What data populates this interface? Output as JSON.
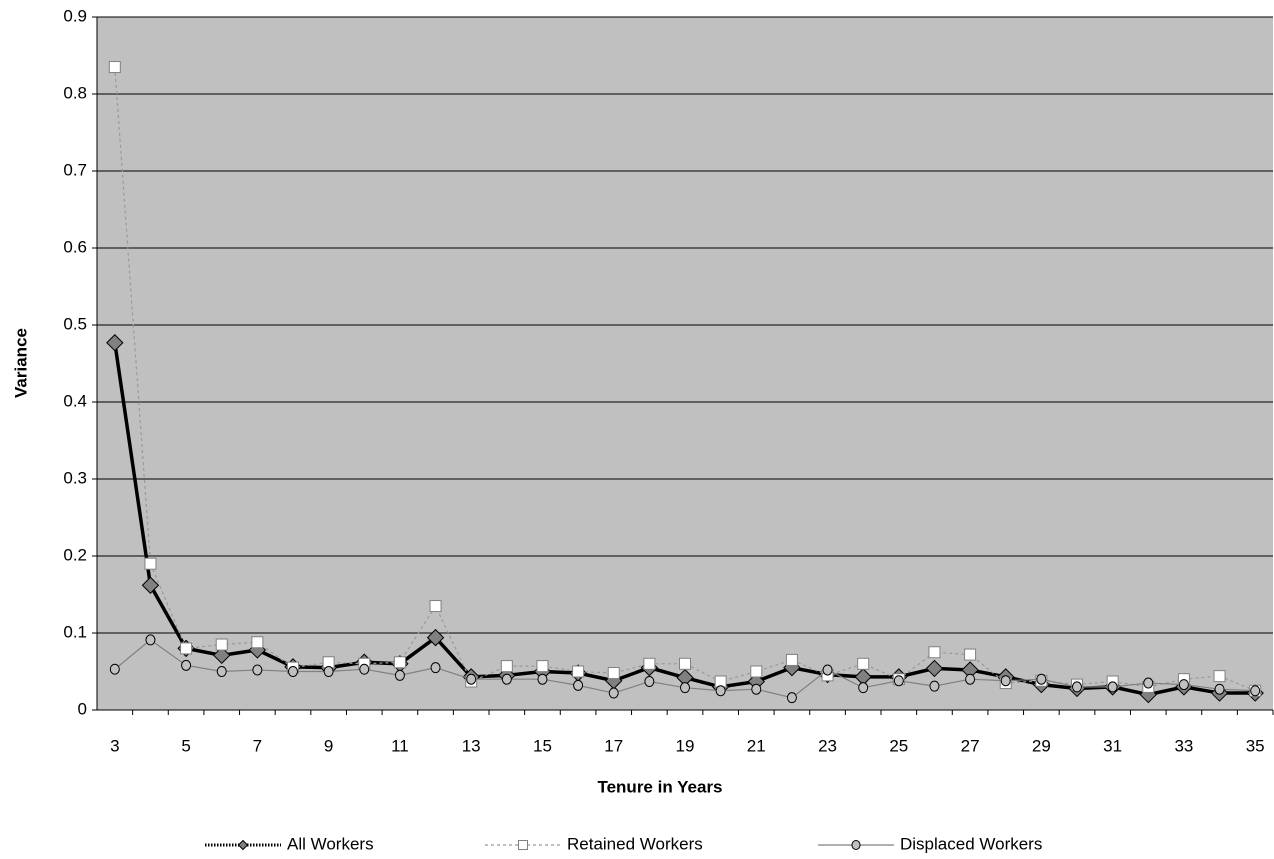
{
  "chart_data": {
    "type": "line",
    "x_label": "Tenure in Years",
    "y_label": "Variance",
    "x": [
      3,
      4,
      5,
      6,
      7,
      8,
      9,
      10,
      11,
      12,
      13,
      14,
      15,
      16,
      17,
      18,
      19,
      20,
      21,
      22,
      23,
      24,
      25,
      26,
      27,
      28,
      29,
      30,
      31,
      32,
      33,
      34,
      35
    ],
    "xlim": [
      2.5,
      35.5
    ],
    "xticks": [
      3,
      5,
      7,
      9,
      11,
      13,
      15,
      17,
      19,
      21,
      23,
      25,
      27,
      29,
      31,
      33,
      35
    ],
    "ylim": [
      0,
      0.9
    ],
    "yticks": [
      0,
      0.1,
      0.2,
      0.3,
      0.4,
      0.5,
      0.6,
      0.7,
      0.8,
      0.9
    ],
    "grid": true,
    "legend": "bottom",
    "series": [
      {
        "name": "All Workers",
        "color": "#000000",
        "marker": "diamond",
        "values": [
          0.477,
          0.162,
          0.08,
          0.071,
          0.078,
          0.056,
          0.055,
          0.062,
          0.06,
          0.094,
          0.043,
          0.045,
          0.05,
          0.048,
          0.038,
          0.055,
          0.042,
          0.03,
          0.037,
          0.055,
          0.046,
          0.043,
          0.043,
          0.054,
          0.052,
          0.043,
          0.033,
          0.028,
          0.03,
          0.02,
          0.03,
          0.022,
          0.022
        ]
      },
      {
        "name": "Retained Workers",
        "color": "#999999",
        "marker": "square",
        "values": [
          0.835,
          0.19,
          0.08,
          0.085,
          0.088,
          0.055,
          0.062,
          0.06,
          0.062,
          0.135,
          0.037,
          0.057,
          0.057,
          0.05,
          0.048,
          0.06,
          0.06,
          0.037,
          0.05,
          0.065,
          0.045,
          0.06,
          0.04,
          0.075,
          0.072,
          0.035,
          0.038,
          0.033,
          0.037,
          0.03,
          0.04,
          0.044,
          0.025
        ]
      },
      {
        "name": "Displaced Workers",
        "color": "#808080",
        "marker": "circle",
        "values": [
          0.053,
          0.091,
          0.058,
          0.05,
          0.052,
          0.05,
          0.05,
          0.053,
          0.045,
          0.055,
          0.04,
          0.04,
          0.04,
          0.032,
          0.022,
          0.037,
          0.029,
          0.025,
          0.027,
          0.016,
          0.052,
          0.029,
          0.038,
          0.031,
          0.04,
          0.038,
          0.04,
          0.03,
          0.03,
          0.035,
          0.033,
          0.027,
          0.025
        ]
      }
    ]
  }
}
